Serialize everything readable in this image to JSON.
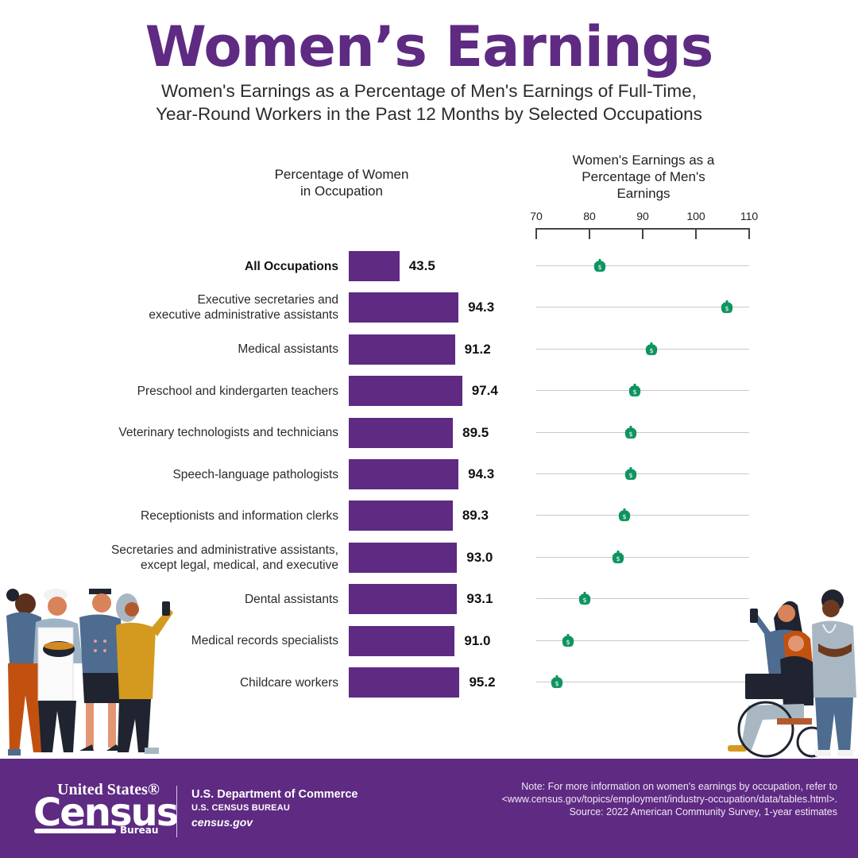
{
  "header": {
    "title": "Women’s Earnings",
    "subtitle_line1": "Women's Earnings as a Percentage of Men's Earnings of Full-Time,",
    "subtitle_line2": "Year-Round Workers in the Past 12 Months by Selected Occupations"
  },
  "columns": {
    "left_heading_line1": "Percentage of Women",
    "left_heading_line2": "in Occupation",
    "right_heading_line1": "Women's Earnings as a",
    "right_heading_line2": "Percentage of Men's",
    "right_heading_line3": "Earnings"
  },
  "colors": {
    "brand_purple": "#5e2a82",
    "purse_green": "#0f9460",
    "track_gray": "#c9c9c9"
  },
  "chart_data": [
    {
      "type": "bar",
      "orientation": "horizontal",
      "title": "Percentage of Women in Occupation",
      "categories": [
        "All Occupations",
        "Executive secretaries and executive administrative assistants",
        "Medical assistants",
        "Preschool and kindergarten teachers",
        "Veterinary technologists and technicians",
        "Speech-language pathologists",
        "Receptionists and information clerks",
        "Secretaries and administrative assistants, except legal, medical, and executive",
        "Dental assistants",
        "Medical records specialists",
        "Childcare workers"
      ],
      "values": [
        43.5,
        94.3,
        91.2,
        97.4,
        89.5,
        94.3,
        89.3,
        93.0,
        93.1,
        91.0,
        95.2
      ],
      "xlabel": "",
      "ylabel": "",
      "grid": false,
      "data_labels": true
    },
    {
      "type": "scatter",
      "marker": "purse-icon",
      "title": "Women's Earnings as a Percentage of Men's Earnings",
      "categories": [
        "All Occupations",
        "Executive secretaries and executive administrative assistants",
        "Medical assistants",
        "Preschool and kindergarten teachers",
        "Veterinary technologists and technicians",
        "Speech-language pathologists",
        "Receptionists and information clerks",
        "Secretaries and administrative assistants, except legal, medical, and executive",
        "Dental assistants",
        "Medical records specialists",
        "Childcare workers"
      ],
      "values": [
        82.0,
        105.8,
        91.6,
        88.5,
        87.8,
        87.8,
        86.6,
        85.4,
        79.1,
        76.0,
        73.9
      ],
      "xlim": [
        70,
        110
      ],
      "xticks": [
        "70",
        "80",
        "90",
        "100",
        "110"
      ],
      "axis_position": "top",
      "grid": false
    }
  ],
  "axis": {
    "ticks": [
      {
        "label": "70",
        "value": 70
      },
      {
        "label": "80",
        "value": 80
      },
      {
        "label": "90",
        "value": 90
      },
      {
        "label": "100",
        "value": 100
      },
      {
        "label": "110",
        "value": 110
      }
    ],
    "min": 70,
    "max": 110
  },
  "rows": [
    {
      "label1": "All Occupations",
      "label2": "",
      "bold": true,
      "pct_women": 43.5,
      "pct_women_label": "43.5",
      "earnings_ratio": 82.0
    },
    {
      "label1": "Executive secretaries and",
      "label2": "executive administrative assistants",
      "bold": false,
      "pct_women": 94.3,
      "pct_women_label": "94.3",
      "earnings_ratio": 105.8
    },
    {
      "label1": "Medical assistants",
      "label2": "",
      "bold": false,
      "pct_women": 91.2,
      "pct_women_label": "91.2",
      "earnings_ratio": 91.6
    },
    {
      "label1": "Preschool and kindergarten teachers",
      "label2": "",
      "bold": false,
      "pct_women": 97.4,
      "pct_women_label": "97.4",
      "earnings_ratio": 88.5
    },
    {
      "label1": "Veterinary technologists and technicians",
      "label2": "",
      "bold": false,
      "pct_women": 89.5,
      "pct_women_label": "89.5",
      "earnings_ratio": 87.8
    },
    {
      "label1": "Speech-language pathologists",
      "label2": "",
      "bold": false,
      "pct_women": 94.3,
      "pct_women_label": "94.3",
      "earnings_ratio": 87.8
    },
    {
      "label1": "Receptionists and information clerks",
      "label2": "",
      "bold": false,
      "pct_women": 89.3,
      "pct_women_label": "89.3",
      "earnings_ratio": 86.6
    },
    {
      "label1": "Secretaries and administrative assistants,",
      "label2": "except legal, medical, and executive",
      "bold": false,
      "pct_women": 93.0,
      "pct_women_label": "93.0",
      "earnings_ratio": 85.4
    },
    {
      "label1": "Dental assistants",
      "label2": "",
      "bold": false,
      "pct_women": 93.1,
      "pct_women_label": "93.1",
      "earnings_ratio": 79.1
    },
    {
      "label1": "Medical records specialists",
      "label2": "",
      "bold": false,
      "pct_women": 91.0,
      "pct_women_label": "91.0",
      "earnings_ratio": 76.0
    },
    {
      "label1": "Childcare workers",
      "label2": "",
      "bold": false,
      "pct_women": 95.2,
      "pct_women_label": "95.2",
      "earnings_ratio": 73.9
    }
  ],
  "footer": {
    "logo_united_states": "United States®",
    "logo_census": "Census",
    "logo_bureau": "Bureau",
    "dept_line1": "U.S. Department of Commerce",
    "dept_line2": "U.S. CENSUS BUREAU",
    "dept_line3": "census.gov",
    "note_line1": "Note: For more information on women's earnings by occupation, refer to",
    "note_line2": "<www.census.gov/topics/employment/industry-occupation/data/tables.html>.",
    "note_line3": "Source: 2022 American Community Survey, 1-year estimates"
  }
}
